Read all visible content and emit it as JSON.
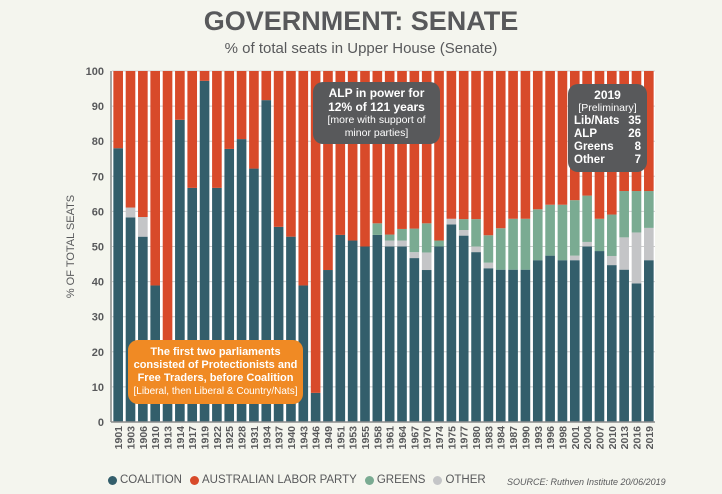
{
  "chart_data": {
    "type": "bar",
    "stacked": true,
    "title": "GOVERNMENT: SENATE",
    "subtitle": "% of total seats in Upper House (Senate)",
    "xlabel": "",
    "ylabel": "% OF TOTAL SEATS",
    "ylim": [
      0,
      100
    ],
    "y_ticks": [
      0,
      10,
      20,
      30,
      40,
      50,
      60,
      70,
      80,
      90,
      100
    ],
    "grid": true,
    "legend_placement": "bottom-left",
    "categories": [
      "1901",
      "1903",
      "1906",
      "1910",
      "1913",
      "1914",
      "1917",
      "1919",
      "1922",
      "1925",
      "1928",
      "1931",
      "1934",
      "1937",
      "1940",
      "1943",
      "1946",
      "1949",
      "1951",
      "1953",
      "1955",
      "1958",
      "1961",
      "1964",
      "1967",
      "1970",
      "1974",
      "1975",
      "1977",
      "1980",
      "1983",
      "1984",
      "1987",
      "1990",
      "1993",
      "1996",
      "1998",
      "2001",
      "2004",
      "2007",
      "2010",
      "2013",
      "2016",
      "2019"
    ],
    "series": [
      {
        "name": "COALITION",
        "color": "#335e6b",
        "values": [
          78,
          58.3,
          52.8,
          38.9,
          19.4,
          86.1,
          66.7,
          97.2,
          66.7,
          77.8,
          80.6,
          72.2,
          91.7,
          55.6,
          52.8,
          38.9,
          8.3,
          43.3,
          53.3,
          51.7,
          50,
          53.3,
          50,
          50,
          46.7,
          43.3,
          50,
          56.3,
          53.1,
          48.4,
          43.8,
          43.4,
          43.4,
          43.4,
          46.1,
          47.4,
          46.1,
          46.1,
          50,
          48.7,
          44.7,
          43.4,
          39.5,
          46.1
        ]
      },
      {
        "name": "OTHER",
        "color": "#c4c5c7",
        "values": [
          0,
          2.8,
          5.6,
          0,
          0,
          0,
          0,
          0,
          0,
          0,
          0,
          0,
          0,
          0,
          0,
          0,
          0,
          0,
          0,
          0,
          0,
          0,
          1.7,
          1.7,
          1.7,
          5,
          0,
          1.6,
          1.6,
          1.6,
          1.6,
          0,
          0,
          0,
          0,
          0,
          0,
          1.3,
          1.3,
          0,
          2.6,
          9.2,
          14.5,
          9.2
        ]
      },
      {
        "name": "GREENS",
        "color": "#7aab92",
        "values": [
          0,
          0,
          0,
          0,
          0,
          0,
          0,
          0,
          0,
          0,
          0,
          0,
          0,
          0,
          0,
          0,
          0,
          0,
          0,
          0,
          0,
          3.3,
          1.7,
          3.3,
          6.7,
          8.3,
          1.7,
          0,
          3.1,
          7.8,
          7.8,
          11.8,
          14.5,
          14.5,
          14.5,
          14.5,
          15.8,
          15.8,
          13.2,
          9.2,
          11.8,
          13.2,
          11.8,
          10.5
        ]
      },
      {
        "name": "AUSTRALIAN LABOR PARTY",
        "color": "#d84a2a",
        "values": [
          22,
          38.9,
          41.6,
          61.1,
          80.6,
          13.9,
          33.3,
          2.8,
          33.3,
          22.2,
          19.4,
          27.8,
          8.3,
          44.4,
          47.2,
          61.1,
          91.7,
          56.7,
          46.7,
          48.3,
          50,
          43.4,
          46.6,
          45,
          44.9,
          43.4,
          48.3,
          42.1,
          42.2,
          42.2,
          46.8,
          44.8,
          42.1,
          42.1,
          39.4,
          38.1,
          38.1,
          36.8,
          35.5,
          42.1,
          40.9,
          34.2,
          34.2,
          34.2
        ]
      }
    ],
    "legend": [
      {
        "label": "COALITION",
        "color": "#335e6b"
      },
      {
        "label": "AUSTRALIAN LABOR PARTY",
        "color": "#d84a2a"
      },
      {
        "label": "GREENS",
        "color": "#7aab92"
      },
      {
        "label": "OTHER",
        "color": "#c4c5c7"
      }
    ],
    "annotations": {
      "alp": {
        "line1": "ALP in power for",
        "line2": "12% of 121 years",
        "line3": "[more with support of",
        "line4": "minor parties]"
      },
      "y2019": {
        "title": "2019",
        "sub": "[Preliminary]",
        "rows": [
          {
            "label": "Lib/Nats",
            "value": "35"
          },
          {
            "label": "ALP",
            "value": "26"
          },
          {
            "label": "Greens",
            "value": "8"
          },
          {
            "label": "Other",
            "value": "7"
          }
        ]
      },
      "first": {
        "line1": "The first two parliaments",
        "line2": "consisted of Protectionists and",
        "line3": "Free Traders, before Coalition",
        "line4": "[Liberal, then Liberal & Country/Nats]"
      }
    },
    "source": "SOURCE: Ruthven Institute 20/06/2019"
  }
}
